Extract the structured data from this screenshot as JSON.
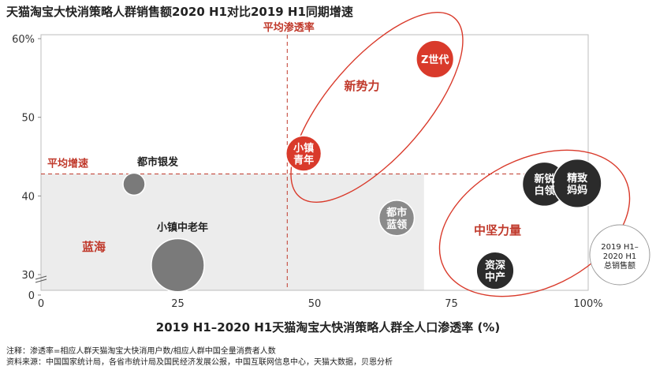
{
  "title": "天猫淘宝大快消策略人群销售额2020 H1对比2019 H1同期增速",
  "chart_data": {
    "type": "scatter",
    "xlabel": "2019 H1–2020 H1天猫淘宝大快消策略人群全人口渗透率 (%)",
    "ylabel": "",
    "xlim": [
      0,
      100
    ],
    "ylim": [
      28,
      60
    ],
    "y_axis_break": true,
    "x_ticks": [
      "0",
      "25",
      "50",
      "75",
      "100%"
    ],
    "y_ticks": [
      "0",
      "30",
      "40",
      "50",
      "60%"
    ],
    "points": [
      {
        "label": "都市银发",
        "x": 17,
        "y": 41.5,
        "size": 1.0,
        "color": "#7a7a7a"
      },
      {
        "label": "小镇中老年",
        "x": 25,
        "y": 31.2,
        "size": 2.4,
        "color": "#7a7a7a"
      },
      {
        "label": "小镇\n青年",
        "x": 48,
        "y": 45.4,
        "size": 1.6,
        "color": "#d93a2b"
      },
      {
        "label": "Z世代",
        "x": 72,
        "y": 57.4,
        "size": 1.7,
        "color": "#d93a2b"
      },
      {
        "label": "都市\n蓝领",
        "x": 65,
        "y": 37.2,
        "size": 1.6,
        "color": "#8a8a8a"
      },
      {
        "label": "新锐\n白领",
        "x": 92,
        "y": 41.5,
        "size": 2.0,
        "color": "#2b2b2b"
      },
      {
        "label": "精致\n妈妈",
        "x": 98,
        "y": 41.6,
        "size": 2.2,
        "color": "#2b2b2b"
      },
      {
        "label": "资深\n中产",
        "x": 83,
        "y": 30.5,
        "size": 1.7,
        "color": "#2b2b2b"
      }
    ],
    "reference_lines": {
      "x": {
        "value": 45,
        "label": "平均渗透率"
      },
      "y": {
        "value": 42.8,
        "label": "平均增速"
      }
    },
    "regions": [
      {
        "label": "蓝海"
      },
      {
        "label": "新势力"
      },
      {
        "label": "中坚力量"
      }
    ],
    "legend": {
      "label": "2019 H1–\n2020 H1\n总销售额"
    },
    "colors": {
      "accent": "#c0392b",
      "new_force": "#d93a2b",
      "mid": "#2b2b2b",
      "grey": "#7a7a7a",
      "blue_sea_fill": "#ececec"
    }
  },
  "notes": [
    "注释：渗透率=相应人群天猫淘宝大快消用户数/相应人群中国全量消费者人数",
    "资料来源：中国国家统计局，各省市统计局及国民经济发展公报，中国互联网信息中心，天猫大数据，贝恩分析"
  ]
}
